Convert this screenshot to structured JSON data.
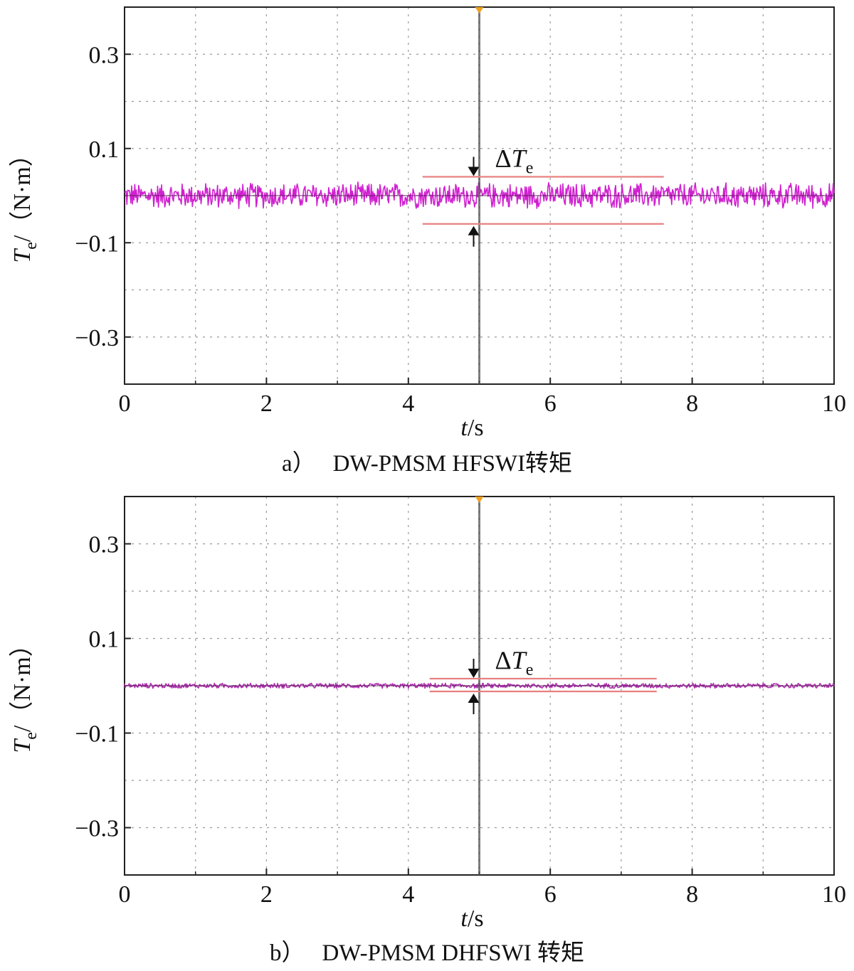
{
  "chart_data": [
    {
      "type": "line",
      "caption_prefix": "a）",
      "caption_title": "DW-PMSM HFSWI转矩",
      "ylabel_symbol": "T",
      "ylabel_subscript": "e",
      "ylabel_unit": "/（N·m）",
      "xlabel_symbol": "t",
      "xlabel_unit": "/s",
      "xlim": [
        0,
        10
      ],
      "ylim": [
        -0.4,
        0.4
      ],
      "xticks": [
        0,
        2,
        4,
        6,
        8,
        10
      ],
      "xtick_labels": [
        "0",
        "2",
        "4",
        "6",
        "8",
        "10"
      ],
      "yticks": [
        0.3,
        0.1,
        -0.1,
        -0.3
      ],
      "ytick_labels": [
        "0.3",
        "0.1",
        "−0.1",
        "−0.3"
      ],
      "grid": true,
      "cursor_x": 5,
      "series": [
        {
          "signal_mean": 0.0,
          "noise_amplitude": 0.03,
          "color": "#d020d0"
        }
      ],
      "ripple_band": {
        "upper": 0.04,
        "lower": -0.06,
        "x_start": 4.2,
        "x_end": 7.6,
        "color": "#e88080"
      },
      "annotation_delta": "Δ",
      "annotation_symbol": "T",
      "annotation_subscript": "e"
    },
    {
      "type": "line",
      "caption_prefix": "b）",
      "caption_title": "DW-PMSM DHFSWI 转矩",
      "ylabel_symbol": "T",
      "ylabel_subscript": "e",
      "ylabel_unit": "/（N·m）",
      "xlabel_symbol": "t",
      "xlabel_unit": "/s",
      "xlim": [
        0,
        10
      ],
      "ylim": [
        -0.4,
        0.4
      ],
      "xticks": [
        0,
        2,
        4,
        6,
        8,
        10
      ],
      "xtick_labels": [
        "0",
        "2",
        "4",
        "6",
        "8",
        "10"
      ],
      "yticks": [
        0.3,
        0.1,
        -0.1,
        -0.3
      ],
      "ytick_labels": [
        "0.3",
        "0.1",
        "−0.1",
        "−0.3"
      ],
      "grid": true,
      "cursor_x": 5,
      "series": [
        {
          "signal_mean": 0.0,
          "noise_amplitude": 0.006,
          "color": "#b030b0"
        }
      ],
      "ripple_band": {
        "upper": 0.015,
        "lower": -0.012,
        "x_start": 4.3,
        "x_end": 7.5,
        "color": "#e88080"
      },
      "annotation_delta": "Δ",
      "annotation_symbol": "T",
      "annotation_subscript": "e"
    }
  ]
}
